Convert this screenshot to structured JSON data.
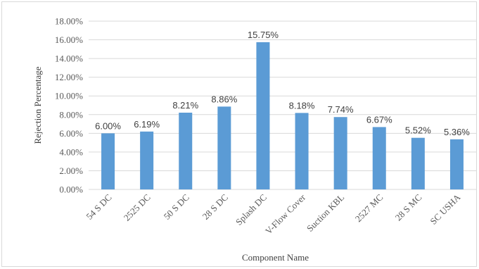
{
  "chart_data": {
    "type": "bar",
    "title": "",
    "xlabel": "Component Name",
    "ylabel": "Rejection Percentage",
    "categories": [
      "54 S DC",
      "2525 DC",
      "50 S DC",
      "28 S DC",
      "Splash DC",
      "V-Flow Cover",
      "Suction KBL",
      "2527 MC",
      "28 S MC",
      "SC USHA"
    ],
    "values": [
      6.0,
      6.19,
      8.21,
      8.86,
      15.75,
      8.18,
      7.74,
      6.67,
      5.52,
      5.36
    ],
    "data_labels": [
      "6.00%",
      "6.19%",
      "8.21%",
      "8.86%",
      "15.75%",
      "8.18%",
      "7.74%",
      "6.67%",
      "5.52%",
      "5.36%"
    ],
    "ylim": [
      0,
      18
    ],
    "y_ticks": [
      0,
      2,
      4,
      6,
      8,
      10,
      12,
      14,
      16,
      18
    ],
    "y_tick_labels": [
      "0.00%",
      "2.00%",
      "4.00%",
      "6.00%",
      "8.00%",
      "10.00%",
      "12.00%",
      "14.00%",
      "16.00%",
      "18.00%"
    ],
    "grid": true,
    "legend": "none",
    "bar_color": "#5b9bd5",
    "grid_color": "#d9d9d9"
  }
}
